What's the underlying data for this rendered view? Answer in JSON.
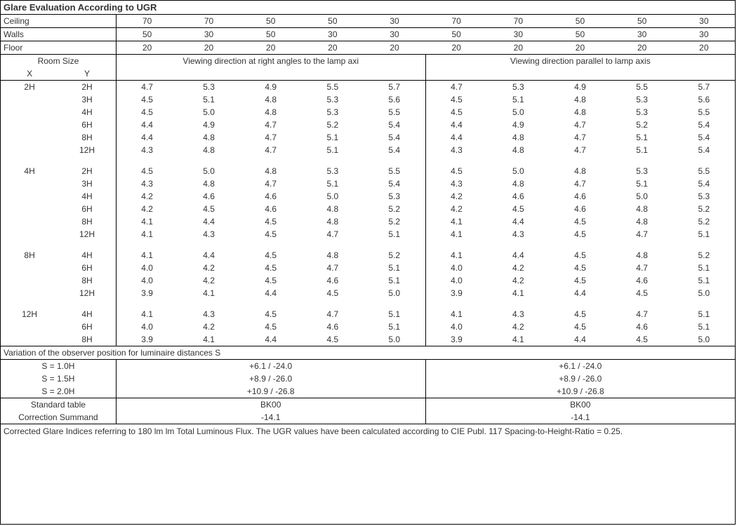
{
  "title": "Glare Evaluation According to UGR",
  "header_rows": [
    {
      "label": "Ceiling",
      "vals": [
        "70",
        "70",
        "50",
        "50",
        "30",
        "70",
        "70",
        "50",
        "50",
        "30"
      ]
    },
    {
      "label": "Walls",
      "vals": [
        "50",
        "30",
        "50",
        "30",
        "30",
        "50",
        "30",
        "50",
        "30",
        "30"
      ]
    },
    {
      "label": "Floor",
      "vals": [
        "20",
        "20",
        "20",
        "20",
        "20",
        "20",
        "20",
        "20",
        "20",
        "20"
      ]
    }
  ],
  "room_size_label": "Room Size",
  "room_x": "X",
  "room_y": "Y",
  "dir_left": "Viewing direction at right angles to the lamp axi",
  "dir_right": "Viewing direction parallel to lamp axis",
  "groups": [
    {
      "x": "2H",
      "rows": [
        {
          "y": "2H",
          "l": [
            "4.7",
            "5.3",
            "4.9",
            "5.5",
            "5.7"
          ],
          "r": [
            "4.7",
            "5.3",
            "4.9",
            "5.5",
            "5.7"
          ]
        },
        {
          "y": "3H",
          "l": [
            "4.5",
            "5.1",
            "4.8",
            "5.3",
            "5.6"
          ],
          "r": [
            "4.5",
            "5.1",
            "4.8",
            "5.3",
            "5.6"
          ]
        },
        {
          "y": "4H",
          "l": [
            "4.5",
            "5.0",
            "4.8",
            "5.3",
            "5.5"
          ],
          "r": [
            "4.5",
            "5.0",
            "4.8",
            "5.3",
            "5.5"
          ]
        },
        {
          "y": "6H",
          "l": [
            "4.4",
            "4.9",
            "4.7",
            "5.2",
            "5.4"
          ],
          "r": [
            "4.4",
            "4.9",
            "4.7",
            "5.2",
            "5.4"
          ]
        },
        {
          "y": "8H",
          "l": [
            "4.4",
            "4.8",
            "4.7",
            "5.1",
            "5.4"
          ],
          "r": [
            "4.4",
            "4.8",
            "4.7",
            "5.1",
            "5.4"
          ]
        },
        {
          "y": "12H",
          "l": [
            "4.3",
            "4.8",
            "4.7",
            "5.1",
            "5.4"
          ],
          "r": [
            "4.3",
            "4.8",
            "4.7",
            "5.1",
            "5.4"
          ]
        }
      ]
    },
    {
      "x": "4H",
      "rows": [
        {
          "y": "2H",
          "l": [
            "4.5",
            "5.0",
            "4.8",
            "5.3",
            "5.5"
          ],
          "r": [
            "4.5",
            "5.0",
            "4.8",
            "5.3",
            "5.5"
          ]
        },
        {
          "y": "3H",
          "l": [
            "4.3",
            "4.8",
            "4.7",
            "5.1",
            "5.4"
          ],
          "r": [
            "4.3",
            "4.8",
            "4.7",
            "5.1",
            "5.4"
          ]
        },
        {
          "y": "4H",
          "l": [
            "4.2",
            "4.6",
            "4.6",
            "5.0",
            "5.3"
          ],
          "r": [
            "4.2",
            "4.6",
            "4.6",
            "5.0",
            "5.3"
          ]
        },
        {
          "y": "6H",
          "l": [
            "4.2",
            "4.5",
            "4.6",
            "4.8",
            "5.2"
          ],
          "r": [
            "4.2",
            "4.5",
            "4.6",
            "4.8",
            "5.2"
          ]
        },
        {
          "y": "8H",
          "l": [
            "4.1",
            "4.4",
            "4.5",
            "4.8",
            "5.2"
          ],
          "r": [
            "4.1",
            "4.4",
            "4.5",
            "4.8",
            "5.2"
          ]
        },
        {
          "y": "12H",
          "l": [
            "4.1",
            "4.3",
            "4.5",
            "4.7",
            "5.1"
          ],
          "r": [
            "4.1",
            "4.3",
            "4.5",
            "4.7",
            "5.1"
          ]
        }
      ]
    },
    {
      "x": "8H",
      "rows": [
        {
          "y": "4H",
          "l": [
            "4.1",
            "4.4",
            "4.5",
            "4.8",
            "5.2"
          ],
          "r": [
            "4.1",
            "4.4",
            "4.5",
            "4.8",
            "5.2"
          ]
        },
        {
          "y": "6H",
          "l": [
            "4.0",
            "4.2",
            "4.5",
            "4.7",
            "5.1"
          ],
          "r": [
            "4.0",
            "4.2",
            "4.5",
            "4.7",
            "5.1"
          ]
        },
        {
          "y": "8H",
          "l": [
            "4.0",
            "4.2",
            "4.5",
            "4.6",
            "5.1"
          ],
          "r": [
            "4.0",
            "4.2",
            "4.5",
            "4.6",
            "5.1"
          ]
        },
        {
          "y": "12H",
          "l": [
            "3.9",
            "4.1",
            "4.4",
            "4.5",
            "5.0"
          ],
          "r": [
            "3.9",
            "4.1",
            "4.4",
            "4.5",
            "5.0"
          ]
        }
      ]
    },
    {
      "x": "12H",
      "rows": [
        {
          "y": "4H",
          "l": [
            "4.1",
            "4.3",
            "4.5",
            "4.7",
            "5.1"
          ],
          "r": [
            "4.1",
            "4.3",
            "4.5",
            "4.7",
            "5.1"
          ]
        },
        {
          "y": "6H",
          "l": [
            "4.0",
            "4.2",
            "4.5",
            "4.6",
            "5.1"
          ],
          "r": [
            "4.0",
            "4.2",
            "4.5",
            "4.6",
            "5.1"
          ]
        },
        {
          "y": "8H",
          "l": [
            "3.9",
            "4.1",
            "4.4",
            "4.5",
            "5.0"
          ],
          "r": [
            "3.9",
            "4.1",
            "4.4",
            "4.5",
            "5.0"
          ]
        }
      ]
    }
  ],
  "variation_title": "Variation of the observer position for luminaire distances S",
  "variation_rows": [
    {
      "label": "S = 1.0H",
      "l": "+6.1 / -24.0",
      "r": "+6.1 / -24.0"
    },
    {
      "label": "S = 1.5H",
      "l": "+8.9 / -26.0",
      "r": "+8.9 / -26.0"
    },
    {
      "label": "S = 2.0H",
      "l": "+10.9 / -26.8",
      "r": "+10.9 / -26.8"
    }
  ],
  "standard_rows": [
    {
      "label": "Standard table",
      "l": "BK00",
      "r": "BK00"
    },
    {
      "label": "Correction Summand",
      "l": "-14.1",
      "r": "-14.1"
    }
  ],
  "footnote": "Corrected Glare Indices referring to 180 lm lm Total Luminous Flux. The UGR values have been calculated according to CIE Publ. 117    Spacing-to-Height-Ratio = 0.25."
}
